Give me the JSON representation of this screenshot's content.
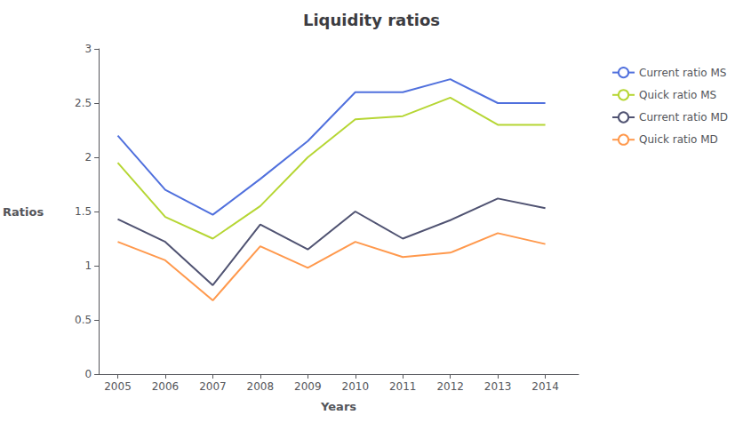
{
  "chart_data": {
    "type": "line",
    "title": "Liquidity ratios",
    "xlabel": "Years",
    "ylabel": "Ratios",
    "x": [
      2005,
      2006,
      2007,
      2008,
      2009,
      2010,
      2011,
      2012,
      2013,
      2014
    ],
    "series": [
      {
        "name": "Current ratio MS",
        "values": [
          2.2,
          1.7,
          1.47,
          1.8,
          2.15,
          2.6,
          2.6,
          2.72,
          2.5,
          2.5
        ]
      },
      {
        "name": "Quick ratio MS",
        "values": [
          1.95,
          1.45,
          1.25,
          1.55,
          2.0,
          2.35,
          2.38,
          2.55,
          2.3,
          2.3
        ]
      },
      {
        "name": "Current ratio MD",
        "values": [
          1.43,
          1.22,
          0.82,
          1.38,
          1.15,
          1.5,
          1.25,
          1.42,
          1.62,
          1.53
        ]
      },
      {
        "name": "Quick ratio MD",
        "values": [
          1.22,
          1.05,
          0.68,
          1.18,
          0.98,
          1.22,
          1.08,
          1.12,
          1.3,
          1.2
        ]
      }
    ],
    "xlim": [
      2004.6,
      2014.7
    ],
    "xticks": [
      2005,
      2006,
      2007,
      2008,
      2009,
      2010,
      2011,
      2012,
      2013,
      2014
    ],
    "ylim": [
      0,
      3
    ],
    "yticks": [
      0,
      0.5,
      1,
      1.5,
      2,
      2.5,
      3
    ],
    "grid": false,
    "legend": "right"
  }
}
